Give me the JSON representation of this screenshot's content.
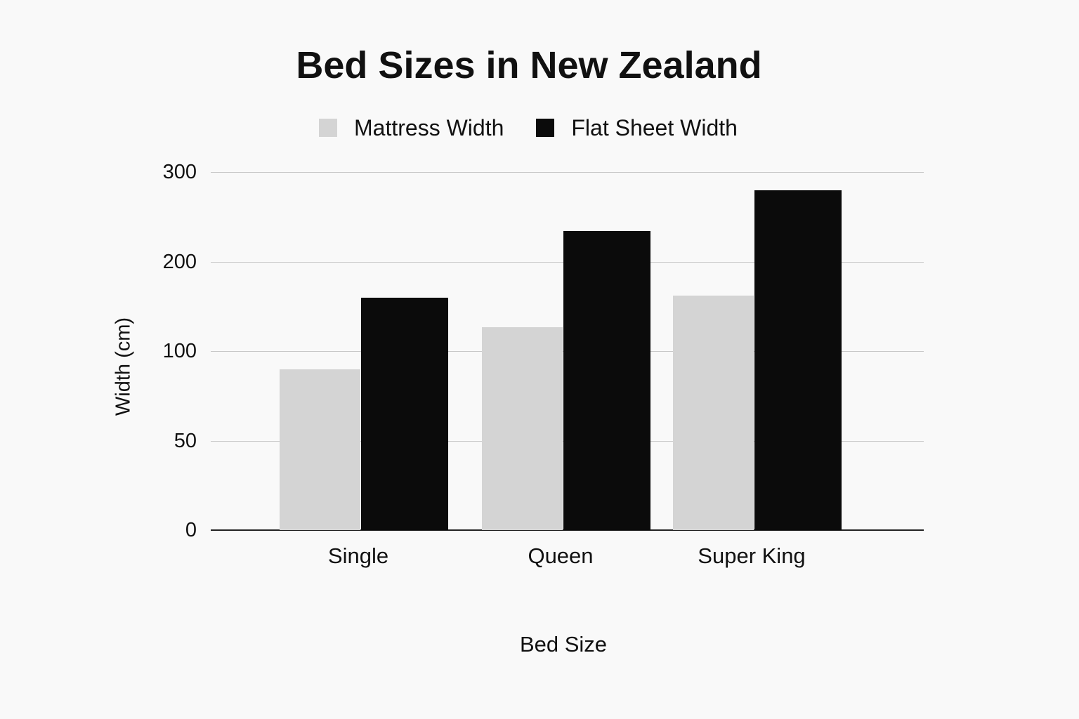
{
  "chart_data": {
    "type": "bar",
    "title": "Bed Sizes in New Zealand",
    "xlabel": "Bed Size",
    "ylabel": "Width (cm)",
    "categories": [
      "Single",
      "Queen",
      "Super King"
    ],
    "series": [
      {
        "name": "Mattress Width",
        "color": "#d4d4d4",
        "values": [
          90,
          127,
          162
        ]
      },
      {
        "name": "Flat Sheet Width",
        "color": "#0b0b0b",
        "values": [
          160,
          234,
          280
        ]
      }
    ],
    "yticks": [
      0,
      50,
      100,
      200,
      300
    ],
    "ylim": [
      0,
      300
    ],
    "y_scale_note": "tick labels evenly spaced (non-linear: 0, 50, 100, 200, 300)",
    "grid": true,
    "legend_position": "top"
  },
  "legend": [
    {
      "label": "Mattress Width",
      "color": "#d4d4d4"
    },
    {
      "label": "Flat Sheet Width",
      "color": "#0b0b0b"
    }
  ]
}
